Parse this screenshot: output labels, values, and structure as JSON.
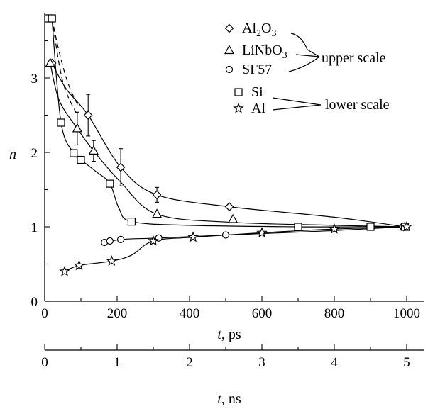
{
  "chart_data": {
    "type": "scatter",
    "ylabel": "n",
    "x_lower_label": "t, ps",
    "x_upper_scale_label": "t, ns",
    "xlim": [
      0,
      1050
    ],
    "ylim": [
      0,
      3.9
    ],
    "x_ticks": [
      0,
      200,
      400,
      600,
      800,
      1000
    ],
    "x_minor_ticks": [
      100,
      300,
      500,
      700,
      900
    ],
    "y_ticks": [
      0,
      1,
      2,
      3
    ],
    "ns_ticks": [
      0,
      1,
      2,
      3,
      4,
      5
    ],
    "ns_per_ps": 0.005,
    "series": [
      {
        "name": "Al2O3",
        "marker": "diamond",
        "scale_group": "upper scale",
        "x": [
          20,
          120,
          210,
          310,
          510,
          995
        ],
        "y": [
          3.2,
          2.5,
          1.8,
          1.43,
          1.27,
          1.0
        ],
        "err": [
          0,
          0.28,
          0.25,
          0.1,
          0,
          0
        ],
        "curve_x": [
          20,
          60,
          120,
          210,
          310,
          510,
          800,
          995
        ],
        "curve_y": [
          3.2,
          2.85,
          2.5,
          1.8,
          1.43,
          1.27,
          1.13,
          1.0
        ]
      },
      {
        "name": "LiNbO3",
        "marker": "triangle",
        "scale_group": "upper scale",
        "x": [
          15,
          90,
          135,
          310,
          520,
          995
        ],
        "y": [
          3.2,
          2.32,
          2.02,
          1.17,
          1.1,
          1.0
        ],
        "err": [
          0,
          0.22,
          0.14,
          0,
          0,
          0
        ],
        "curve_x": [
          15,
          40,
          90,
          135,
          210,
          310,
          520,
          800,
          995
        ],
        "curve_y": [
          3.2,
          2.7,
          2.32,
          2.02,
          1.6,
          1.17,
          1.06,
          1.02,
          1.0
        ]
      },
      {
        "name": "SF57",
        "marker": "circle",
        "scale_group": "upper scale",
        "x": [
          165,
          180,
          210,
          315,
          500,
          990
        ],
        "y": [
          0.79,
          0.81,
          0.83,
          0.85,
          0.89,
          1.0
        ],
        "err": [
          0,
          0,
          0,
          0,
          0,
          0
        ],
        "curve_x": [
          160,
          210,
          315,
          500,
          800,
          990
        ],
        "curve_y": [
          0.78,
          0.83,
          0.85,
          0.89,
          0.95,
          1.0
        ]
      },
      {
        "name": "Si",
        "marker": "square",
        "scale_group": "lower scale",
        "x": [
          10,
          20,
          45,
          80,
          100,
          180,
          240,
          700,
          900,
          995
        ],
        "y": [
          3.8,
          3.8,
          2.4,
          1.99,
          1.9,
          1.58,
          1.07,
          1.0,
          1.0,
          1.0
        ],
        "err": [
          0,
          0,
          0,
          0,
          0,
          0,
          0,
          0,
          0,
          0
        ],
        "curve_x": [
          20,
          45,
          80,
          100,
          140,
          180,
          205,
          240,
          400,
          700,
          900,
          995
        ],
        "curve_y": [
          3.8,
          2.4,
          1.99,
          1.9,
          1.75,
          1.58,
          1.25,
          1.07,
          1.02,
          1.0,
          1.0,
          1.0
        ]
      },
      {
        "name": "Al",
        "marker": "star",
        "scale_group": "lower scale",
        "x": [
          55,
          95,
          185,
          300,
          410,
          600,
          800,
          1000
        ],
        "y": [
          0.4,
          0.48,
          0.54,
          0.81,
          0.86,
          0.92,
          0.97,
          1.0
        ],
        "err": [
          0,
          0,
          0,
          0,
          0,
          0,
          0,
          0
        ],
        "curve_x": [
          50,
          95,
          185,
          240,
          300,
          410,
          600,
          800,
          1000
        ],
        "curve_y": [
          0.39,
          0.48,
          0.54,
          0.62,
          0.81,
          0.86,
          0.92,
          0.97,
          1.0
        ]
      }
    ],
    "dashed_extrapolations": [
      {
        "x": [
          20,
          40,
          65,
          95
        ],
        "y": [
          3.8,
          3.35,
          2.92,
          2.6
        ]
      },
      {
        "x": [
          20,
          50,
          90
        ],
        "y": [
          3.8,
          2.95,
          2.5
        ]
      }
    ]
  },
  "legend": {
    "items": [
      {
        "symbol": "diamond",
        "label_main": "Al",
        "label_sub": "2",
        "label_main2": "O",
        "label_sub2": "3"
      },
      {
        "symbol": "triangle",
        "label_main": "LiNbO",
        "label_sub": "3",
        "label_main2": "",
        "label_sub2": ""
      },
      {
        "symbol": "circle",
        "label_main": "SF57",
        "label_sub": "",
        "label_main2": "",
        "label_sub2": ""
      },
      {
        "symbol": "square",
        "label_main": "Si",
        "label_sub": "",
        "label_main2": "",
        "label_sub2": ""
      },
      {
        "symbol": "star",
        "label_main": "Al",
        "label_sub": "",
        "label_main2": "",
        "label_sub2": ""
      }
    ],
    "groups": [
      "upper scale",
      "lower scale"
    ]
  }
}
